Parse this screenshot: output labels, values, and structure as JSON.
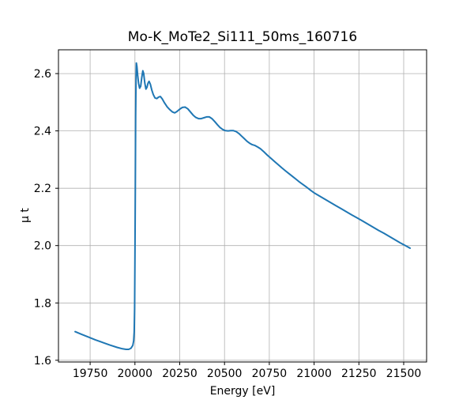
{
  "figure": {
    "background": "#ffffff"
  },
  "chart_data": {
    "type": "line",
    "title": "Mo-K_MoTe2_Si111_50ms_160716",
    "xlabel": "Energy [eV]",
    "ylabel": "μ t",
    "grid": true,
    "legend": "none",
    "x_ticks": [
      19750,
      20000,
      20250,
      20500,
      20750,
      21000,
      21250,
      21500
    ],
    "x_tick_labels": [
      "19750",
      "20000",
      "20250",
      "20500",
      "20750",
      "21000",
      "21250",
      "21500"
    ],
    "y_ticks": [
      1.6,
      1.8,
      2.0,
      2.2,
      2.4,
      2.6
    ],
    "y_tick_labels": [
      "1.6",
      "1.8",
      "2.0",
      "2.2",
      "2.4",
      "2.6"
    ],
    "xlim": [
      19573,
      21628
    ],
    "ylim": [
      1.594,
      2.683
    ],
    "colors": {
      "line": "#1f77b4",
      "grid": "#b0b0b0",
      "spine": "#000000",
      "tick": "#000000"
    },
    "line_width": 2,
    "series": [
      {
        "name": "mu_t_absorption",
        "points": [
          [
            19666,
            1.7
          ],
          [
            19700,
            1.691
          ],
          [
            19740,
            1.681
          ],
          [
            19780,
            1.671
          ],
          [
            19820,
            1.662
          ],
          [
            19860,
            1.653
          ],
          [
            19900,
            1.645
          ],
          [
            19930,
            1.64
          ],
          [
            19950,
            1.638
          ],
          [
            19965,
            1.638
          ],
          [
            19978,
            1.642
          ],
          [
            19988,
            1.652
          ],
          [
            19993,
            1.668
          ],
          [
            19996,
            1.7
          ],
          [
            19998,
            1.78
          ],
          [
            20000,
            1.95
          ],
          [
            20002,
            2.2
          ],
          [
            20004,
            2.45
          ],
          [
            20006,
            2.59
          ],
          [
            20008,
            2.637
          ],
          [
            20011,
            2.625
          ],
          [
            20015,
            2.596
          ],
          [
            20020,
            2.566
          ],
          [
            20026,
            2.549
          ],
          [
            20032,
            2.556
          ],
          [
            20038,
            2.585
          ],
          [
            20044,
            2.61
          ],
          [
            20049,
            2.6
          ],
          [
            20055,
            2.567
          ],
          [
            20061,
            2.546
          ],
          [
            20067,
            2.552
          ],
          [
            20073,
            2.567
          ],
          [
            20079,
            2.573
          ],
          [
            20086,
            2.563
          ],
          [
            20094,
            2.543
          ],
          [
            20102,
            2.527
          ],
          [
            20112,
            2.515
          ],
          [
            20122,
            2.513
          ],
          [
            20132,
            2.518
          ],
          [
            20142,
            2.52
          ],
          [
            20152,
            2.512
          ],
          [
            20165,
            2.498
          ],
          [
            20180,
            2.484
          ],
          [
            20195,
            2.474
          ],
          [
            20210,
            2.466
          ],
          [
            20222,
            2.463
          ],
          [
            20235,
            2.468
          ],
          [
            20250,
            2.476
          ],
          [
            20265,
            2.482
          ],
          [
            20280,
            2.483
          ],
          [
            20295,
            2.477
          ],
          [
            20310,
            2.466
          ],
          [
            20325,
            2.455
          ],
          [
            20340,
            2.447
          ],
          [
            20355,
            2.443
          ],
          [
            20370,
            2.443
          ],
          [
            20385,
            2.446
          ],
          [
            20400,
            2.449
          ],
          [
            20415,
            2.449
          ],
          [
            20430,
            2.443
          ],
          [
            20445,
            2.433
          ],
          [
            20460,
            2.422
          ],
          [
            20475,
            2.412
          ],
          [
            20490,
            2.405
          ],
          [
            20505,
            2.401
          ],
          [
            20520,
            2.4
          ],
          [
            20535,
            2.401
          ],
          [
            20550,
            2.401
          ],
          [
            20565,
            2.398
          ],
          [
            20580,
            2.391
          ],
          [
            20595,
            2.382
          ],
          [
            20610,
            2.373
          ],
          [
            20625,
            2.364
          ],
          [
            20640,
            2.357
          ],
          [
            20655,
            2.352
          ],
          [
            20670,
            2.349
          ],
          [
            20685,
            2.344
          ],
          [
            20700,
            2.338
          ],
          [
            20720,
            2.327
          ],
          [
            20740,
            2.315
          ],
          [
            20760,
            2.304
          ],
          [
            20780,
            2.293
          ],
          [
            20800,
            2.282
          ],
          [
            20820,
            2.271
          ],
          [
            20840,
            2.261
          ],
          [
            20860,
            2.251
          ],
          [
            20880,
            2.241
          ],
          [
            20900,
            2.231
          ],
          [
            20920,
            2.221
          ],
          [
            20940,
            2.212
          ],
          [
            20960,
            2.203
          ],
          [
            20980,
            2.193
          ],
          [
            21000,
            2.184
          ],
          [
            21030,
            2.173
          ],
          [
            21060,
            2.162
          ],
          [
            21090,
            2.151
          ],
          [
            21120,
            2.14
          ],
          [
            21150,
            2.129
          ],
          [
            21180,
            2.118
          ],
          [
            21210,
            2.107
          ],
          [
            21240,
            2.097
          ],
          [
            21270,
            2.086
          ],
          [
            21300,
            2.075
          ],
          [
            21330,
            2.064
          ],
          [
            21360,
            2.053
          ],
          [
            21390,
            2.043
          ],
          [
            21420,
            2.032
          ],
          [
            21450,
            2.021
          ],
          [
            21480,
            2.01
          ],
          [
            21510,
            2.0
          ],
          [
            21536,
            1.991
          ]
        ]
      }
    ]
  }
}
